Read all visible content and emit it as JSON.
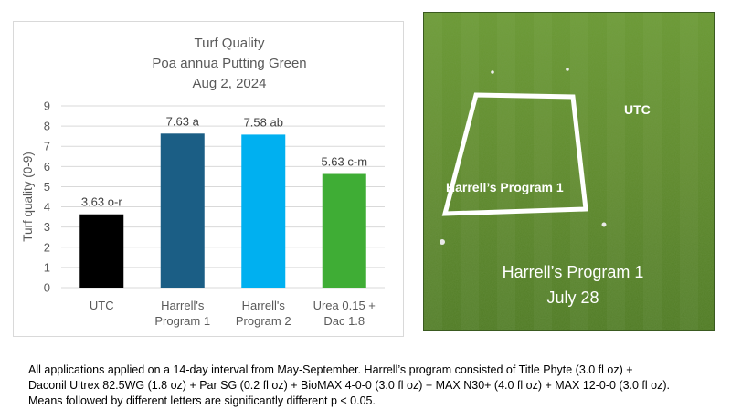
{
  "chart_data": {
    "type": "bar",
    "title_lines": [
      "Turf Quality",
      "Poa annua Putting Green",
      "Aug 2, 2024"
    ],
    "ylabel": "Turf quality (0-9)",
    "xlabel": "",
    "ylim": [
      0,
      9
    ],
    "yticks": [
      0,
      1,
      2,
      3,
      4,
      5,
      6,
      7,
      8,
      9
    ],
    "grid": true,
    "categories": [
      [
        "UTC"
      ],
      [
        "Harrell's",
        "Program 1"
      ],
      [
        "Harrell's",
        "Program 2"
      ],
      [
        "Urea 0.15 +",
        "Dac 1.8"
      ]
    ],
    "values": [
      3.63,
      7.63,
      7.58,
      5.63
    ],
    "data_labels": [
      "3.63 o-r",
      "7.63 a",
      "7.58 ab",
      "5.63 c-m"
    ],
    "colors": [
      "#000000",
      "#1b5e85",
      "#00b0f0",
      "#3fad35"
    ]
  },
  "photo": {
    "plot_label": "Harrell’s Program 1",
    "utc_label": "UTC",
    "caption_line1": "Harrell’s Program 1",
    "caption_line2": "July 28",
    "turf_color": "#5f8a2c"
  },
  "footnote": {
    "line1": "All applications applied on a 14-day interval from May-September. Harrell’s program consisted of Title Phyte (3.0 fl oz) +",
    "line2": "Daconil Ultrex 82.5WG (1.8 oz) + Par SG (0.2 fl oz) + BioMAX 4-0-0 (3.0 fl oz) + MAX N30+ (4.0 fl oz) + MAX 12-0-0 (3.0 fl oz).",
    "line3": "Means followed by different letters are significantly different p < 0.05."
  }
}
